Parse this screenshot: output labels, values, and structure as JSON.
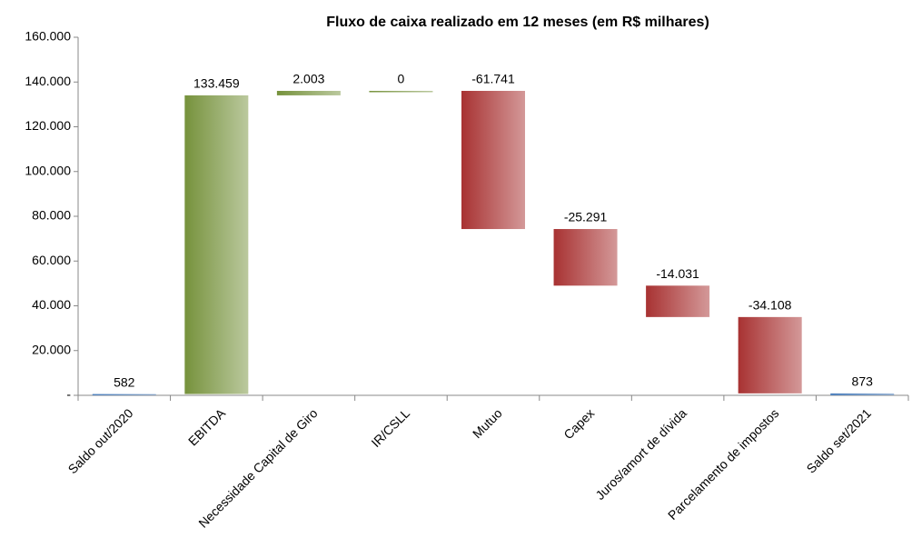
{
  "chart_data": {
    "type": "waterfall",
    "title": "Fluxo de caixa realizado em 12 meses (em  R$ milhares)",
    "categories": [
      "Saldo out/2020",
      "EBITDA",
      "Necessidade Capital de Giro",
      "IR/CSLL",
      "Mutuo",
      "Capex",
      "Juros/amort de dívida",
      "Parcelamento de impostos",
      "Saldo set/2021"
    ],
    "values": [
      582,
      133459,
      2003,
      0,
      -61741,
      -25291,
      -14031,
      -34108,
      873
    ],
    "value_labels": [
      "582",
      "133.459",
      "2.003",
      "0",
      "-61.741",
      "-25.291",
      "-14.031",
      "-34.108",
      "873"
    ],
    "measure": [
      "total",
      "relative",
      "relative",
      "relative",
      "relative",
      "relative",
      "relative",
      "relative",
      "total"
    ],
    "colors": {
      "increase": "#76923c",
      "decrease": "#a83232",
      "total": "#4f81bd"
    },
    "ylim": [
      0,
      160000
    ],
    "yticks": [
      {
        "value": 0,
        "label": "-"
      },
      {
        "value": 20000,
        "label": "20.000"
      },
      {
        "value": 40000,
        "label": "40.000"
      },
      {
        "value": 60000,
        "label": "60.000"
      },
      {
        "value": 80000,
        "label": "80.000"
      },
      {
        "value": 100000,
        "label": "100.000"
      },
      {
        "value": 120000,
        "label": "120.000"
      },
      {
        "value": 140000,
        "label": "140.000"
      },
      {
        "value": 160000,
        "label": "160.000"
      }
    ]
  }
}
